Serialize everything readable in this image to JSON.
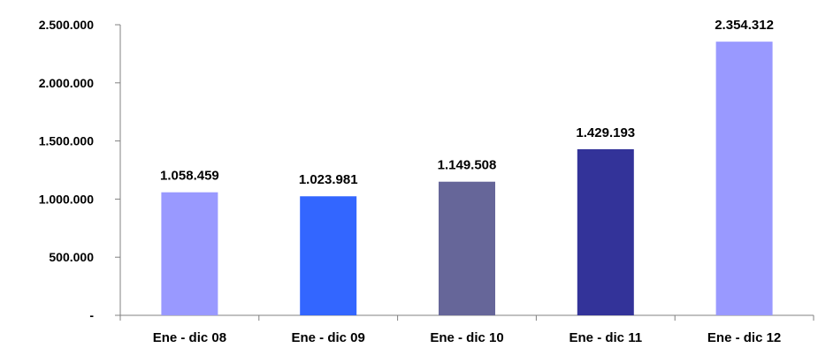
{
  "chart_data": {
    "type": "bar",
    "title": "",
    "xlabel": "",
    "ylabel": "",
    "categories": [
      "Ene - dic 08",
      "Ene - dic 09",
      "Ene - dic 10",
      "Ene - dic 11",
      "Ene - dic 12"
    ],
    "values": [
      1058459,
      1023981,
      1149508,
      1429193,
      2354312
    ],
    "value_labels": [
      "1.058.459",
      "1.023.981",
      "1.149.508",
      "1.429.193",
      "2.354.312"
    ],
    "bar_colors": [
      "#9999ff",
      "#3366ff",
      "#666699",
      "#333399",
      "#9999ff"
    ],
    "ylim": [
      0,
      2500000
    ],
    "yticks": [
      0,
      500000,
      1000000,
      1500000,
      2000000,
      2500000
    ],
    "ytick_labels": [
      "-",
      "500.000",
      "1.000.000",
      "1.500.000",
      "2.000.000",
      "2.500.000"
    ],
    "grid": false,
    "legend": "none"
  }
}
